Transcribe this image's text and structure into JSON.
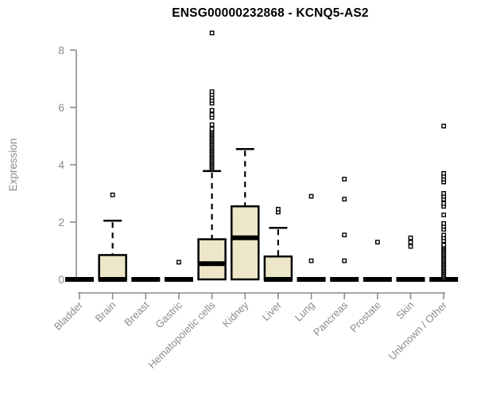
{
  "chart_data": {
    "type": "boxplot",
    "title": "ENSG00000232868 - KCNQ5-AS2",
    "ylabel": "Expression",
    "xlabel": "",
    "ylim": [
      0,
      8.7
    ],
    "y_ticks": [
      0,
      2,
      4,
      6,
      8
    ],
    "grid": false,
    "legend": "none",
    "box_fill": "#ede6c8",
    "box_stroke": "#000000",
    "axis_color": "#8c8c8c",
    "text_color": "#8c8c8c",
    "title_color": "#000000",
    "categories": [
      "Bladder",
      "Brain",
      "Breast",
      "Gastric",
      "Hematopoietic cells",
      "Kidney",
      "Liver",
      "Lung",
      "Pancreas",
      "Prostate",
      "Skin",
      "Unknown / Other"
    ],
    "boxes": [
      {
        "category": "Bladder",
        "whisker_low": 0,
        "q1": 0,
        "median": 0,
        "q3": 0,
        "whisker_high": 0,
        "outliers": []
      },
      {
        "category": "Brain",
        "whisker_low": 0,
        "q1": 0,
        "median": 0,
        "q3": 0.85,
        "whisker_high": 2.05,
        "outliers": [
          2.95
        ]
      },
      {
        "category": "Breast",
        "whisker_low": 0,
        "q1": 0,
        "median": 0,
        "q3": 0,
        "whisker_high": 0,
        "outliers": []
      },
      {
        "category": "Gastric",
        "whisker_low": 0,
        "q1": 0,
        "median": 0,
        "q3": 0,
        "whisker_high": 0,
        "outliers": [
          0.6
        ]
      },
      {
        "category": "Hematopoietic cells",
        "whisker_low": 0,
        "q1": 0,
        "median": 0.55,
        "q3": 1.4,
        "whisker_high": 3.78,
        "outliers": [
          3.85,
          3.9,
          3.95,
          4.0,
          4.05,
          4.1,
          4.15,
          4.2,
          4.25,
          4.3,
          4.35,
          4.4,
          4.45,
          4.5,
          4.55,
          4.6,
          4.65,
          4.7,
          4.75,
          4.8,
          4.85,
          4.9,
          4.95,
          5.0,
          5.05,
          5.1,
          5.15,
          5.2,
          5.25,
          5.4,
          5.65,
          5.75,
          5.9,
          6.15,
          6.25,
          6.35,
          6.45,
          6.55,
          8.6
        ]
      },
      {
        "category": "Kidney",
        "whisker_low": 0,
        "q1": 0,
        "median": 1.45,
        "q3": 2.55,
        "whisker_high": 4.55,
        "outliers": []
      },
      {
        "category": "Liver",
        "whisker_low": 0,
        "q1": 0,
        "median": 0,
        "q3": 0.8,
        "whisker_high": 1.8,
        "outliers": [
          2.35,
          2.45
        ]
      },
      {
        "category": "Lung",
        "whisker_low": 0,
        "q1": 0,
        "median": 0,
        "q3": 0,
        "whisker_high": 0,
        "outliers": [
          0.65,
          2.9
        ]
      },
      {
        "category": "Pancreas",
        "whisker_low": 0,
        "q1": 0,
        "median": 0,
        "q3": 0,
        "whisker_high": 0,
        "outliers": [
          0.65,
          1.55,
          2.8,
          3.5
        ]
      },
      {
        "category": "Prostate",
        "whisker_low": 0,
        "q1": 0,
        "median": 0,
        "q3": 0,
        "whisker_high": 0,
        "outliers": [
          1.3
        ]
      },
      {
        "category": "Skin",
        "whisker_low": 0,
        "q1": 0,
        "median": 0,
        "q3": 0,
        "whisker_high": 0,
        "outliers": [
          1.15,
          1.3,
          1.45
        ]
      },
      {
        "category": "Unknown / Other",
        "whisker_low": 0,
        "q1": 0,
        "median": 0,
        "q3": 0,
        "whisker_high": 0,
        "outliers": [
          0.05,
          0.1,
          0.15,
          0.2,
          0.25,
          0.3,
          0.35,
          0.4,
          0.45,
          0.5,
          0.55,
          0.6,
          0.65,
          0.7,
          0.75,
          0.8,
          0.85,
          0.9,
          0.95,
          1.0,
          1.05,
          1.1,
          1.15,
          1.2,
          1.35,
          1.45,
          1.55,
          1.75,
          1.85,
          1.95,
          2.25,
          2.55,
          2.65,
          2.8,
          2.9,
          3.0,
          3.4,
          3.5,
          3.6,
          3.7,
          5.35
        ]
      }
    ]
  }
}
